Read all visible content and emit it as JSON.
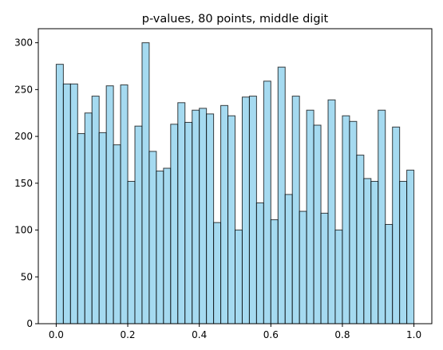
{
  "chart_data": {
    "type": "bar",
    "title": "p-values, 80 points, middle digit",
    "xlabel": "",
    "ylabel": "",
    "xlim": [
      -0.05,
      1.05
    ],
    "ylim": [
      0,
      315
    ],
    "grid": false,
    "bar_color": "#87CEEB",
    "edge_color": "#000000",
    "bin_width": 0.02,
    "bin_edges_start": 0.0,
    "x_ticks": [
      {
        "value": 0.0,
        "label": "0.0"
      },
      {
        "value": 0.2,
        "label": "0.2"
      },
      {
        "value": 0.4,
        "label": "0.4"
      },
      {
        "value": 0.6,
        "label": "0.6"
      },
      {
        "value": 0.8,
        "label": "0.8"
      },
      {
        "value": 1.0,
        "label": "1.0"
      }
    ],
    "y_ticks": [
      {
        "value": 0,
        "label": "0"
      },
      {
        "value": 50,
        "label": "50"
      },
      {
        "value": 100,
        "label": "100"
      },
      {
        "value": 150,
        "label": "150"
      },
      {
        "value": 200,
        "label": "200"
      },
      {
        "value": 250,
        "label": "250"
      },
      {
        "value": 300,
        "label": "300"
      }
    ],
    "values": [
      277,
      256,
      256,
      203,
      225,
      243,
      204,
      254,
      191,
      255,
      152,
      211,
      300,
      184,
      163,
      166,
      213,
      236,
      215,
      228,
      230,
      224,
      108,
      233,
      222,
      100,
      242,
      243,
      129,
      259,
      111,
      274,
      138,
      243,
      120,
      228,
      212,
      118,
      239,
      100,
      222,
      216,
      180,
      155,
      152,
      228,
      106,
      210,
      152,
      164
    ]
  }
}
